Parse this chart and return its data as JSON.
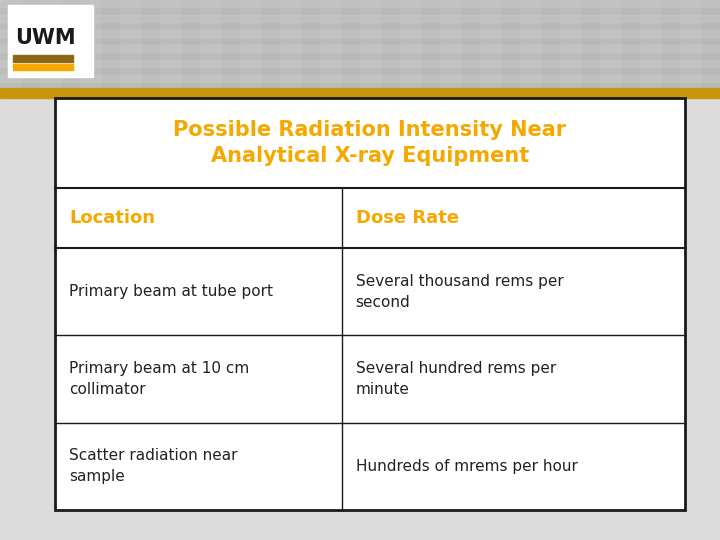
{
  "title_line1": "Possible Radiation Intensity Near",
  "title_line2": "Analytical X-ray Equipment",
  "title_color": "#F5A800",
  "col_headers": [
    "Location",
    "Dose Rate"
  ],
  "header_color": "#F5A800",
  "rows": [
    [
      "Primary beam at tube port",
      "Several thousand rems per\nsecond"
    ],
    [
      "Primary beam at 10 cm\ncollimator",
      "Several hundred rems per\nminute"
    ],
    [
      "Scatter radiation near\nsample",
      "Hundreds of mrems per hour"
    ]
  ],
  "row_text_color": "#222222",
  "table_border_color": "#1a1a1a",
  "bg_top_color": "#c8c8c8",
  "bg_bottom_color": "#e8e8e8",
  "gold_stripe_color": "#C8960C",
  "uwm_gold": "#F5A800",
  "fig_width": 7.2,
  "fig_height": 5.4,
  "dpi": 100,
  "header_bg": "#fffbe6",
  "table_bg": "#ffffff",
  "uwm_text_color": "#1a1a1a",
  "col_split": 0.455
}
